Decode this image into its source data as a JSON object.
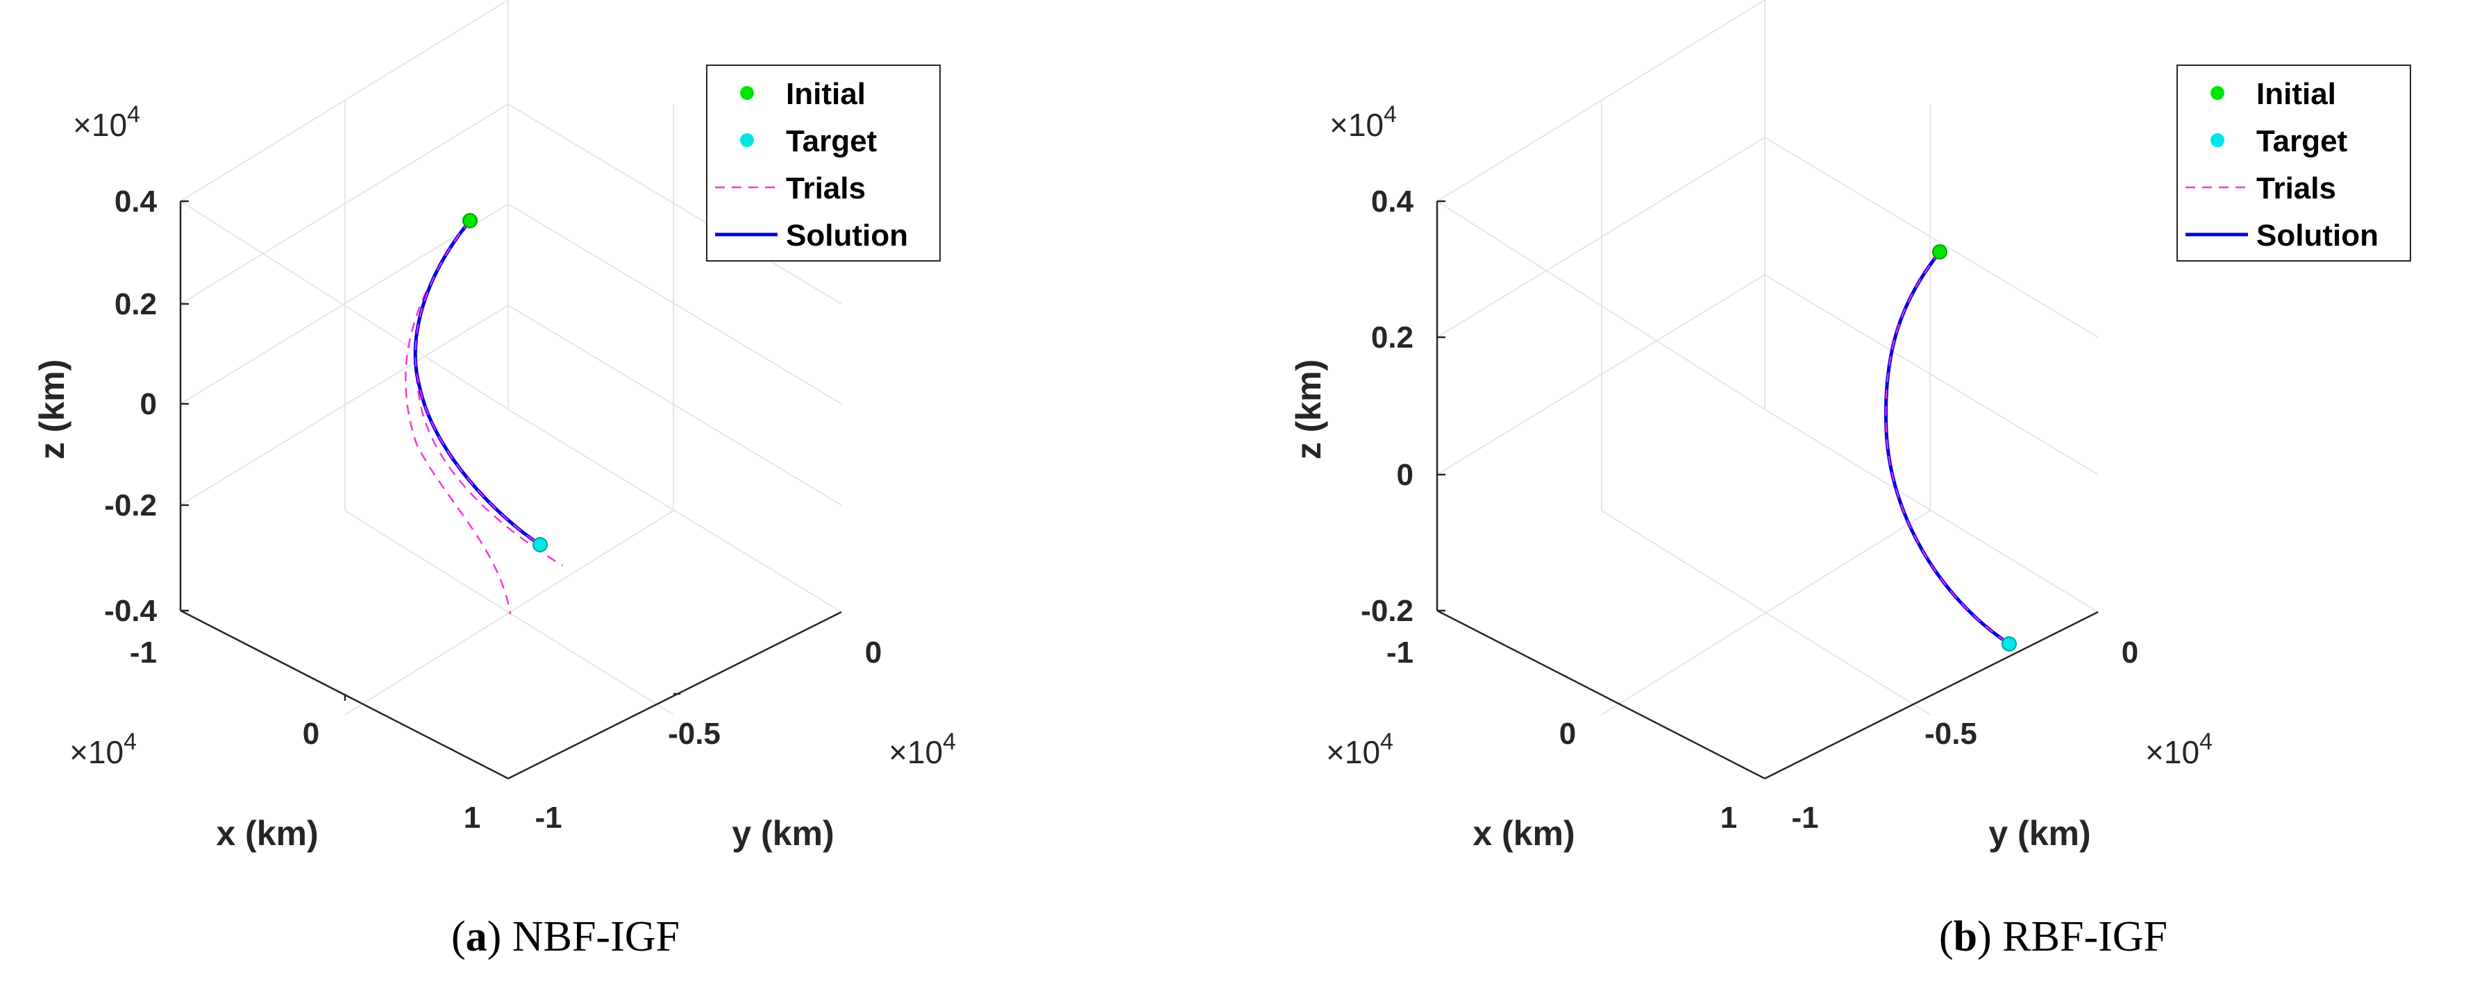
{
  "colors": {
    "initial": "#00e600",
    "target": "#00e6e6",
    "trials": "#ff33dd",
    "solution": "#0000e6",
    "axis": "#262626",
    "grid": "#e6e6e6"
  },
  "legend": {
    "initial": "Initial",
    "target": "Target",
    "trials": "Trials",
    "solution": "Solution"
  },
  "chart_data": [
    {
      "type": "line",
      "projection": "3d",
      "caption_letter": "a",
      "caption_text": "NBF-IGF",
      "xlabel": "x (km)",
      "ylabel": "y (km)",
      "zlabel": "z (km)",
      "x_multiplier": "×10",
      "y_multiplier": "×10",
      "z_multiplier": "×10",
      "multiplier_exp": "4",
      "xticks": [
        "-1",
        "0",
        "1"
      ],
      "yticks": [
        "-1",
        "-0.5",
        "0"
      ],
      "zticks": [
        "0.4",
        "0.2",
        "0",
        "-0.2",
        "-0.4"
      ],
      "grid": true,
      "legend_position": "top-right",
      "series": [
        {
          "name": "Initial",
          "marker": "circle"
        },
        {
          "name": "Target",
          "marker": "circle"
        },
        {
          "name": "Trials",
          "style": "dashed"
        },
        {
          "name": "Solution",
          "style": "solid"
        }
      ]
    },
    {
      "type": "line",
      "projection": "3d",
      "caption_letter": "b",
      "caption_text": "RBF-IGF",
      "xlabel": "x (km)",
      "ylabel": "y (km)",
      "zlabel": "z (km)",
      "x_multiplier": "×10",
      "y_multiplier": "×10",
      "z_multiplier": "×10",
      "multiplier_exp": "4",
      "xticks": [
        "-1",
        "0",
        "1"
      ],
      "yticks": [
        "-1",
        "-0.5",
        "0"
      ],
      "zticks": [
        "0.4",
        "0.2",
        "0",
        "-0.2"
      ],
      "grid": true,
      "legend_position": "top-right",
      "series": [
        {
          "name": "Initial",
          "marker": "circle"
        },
        {
          "name": "Target",
          "marker": "circle"
        },
        {
          "name": "Trials",
          "style": "dashed"
        },
        {
          "name": "Solution",
          "style": "solid"
        }
      ]
    }
  ]
}
